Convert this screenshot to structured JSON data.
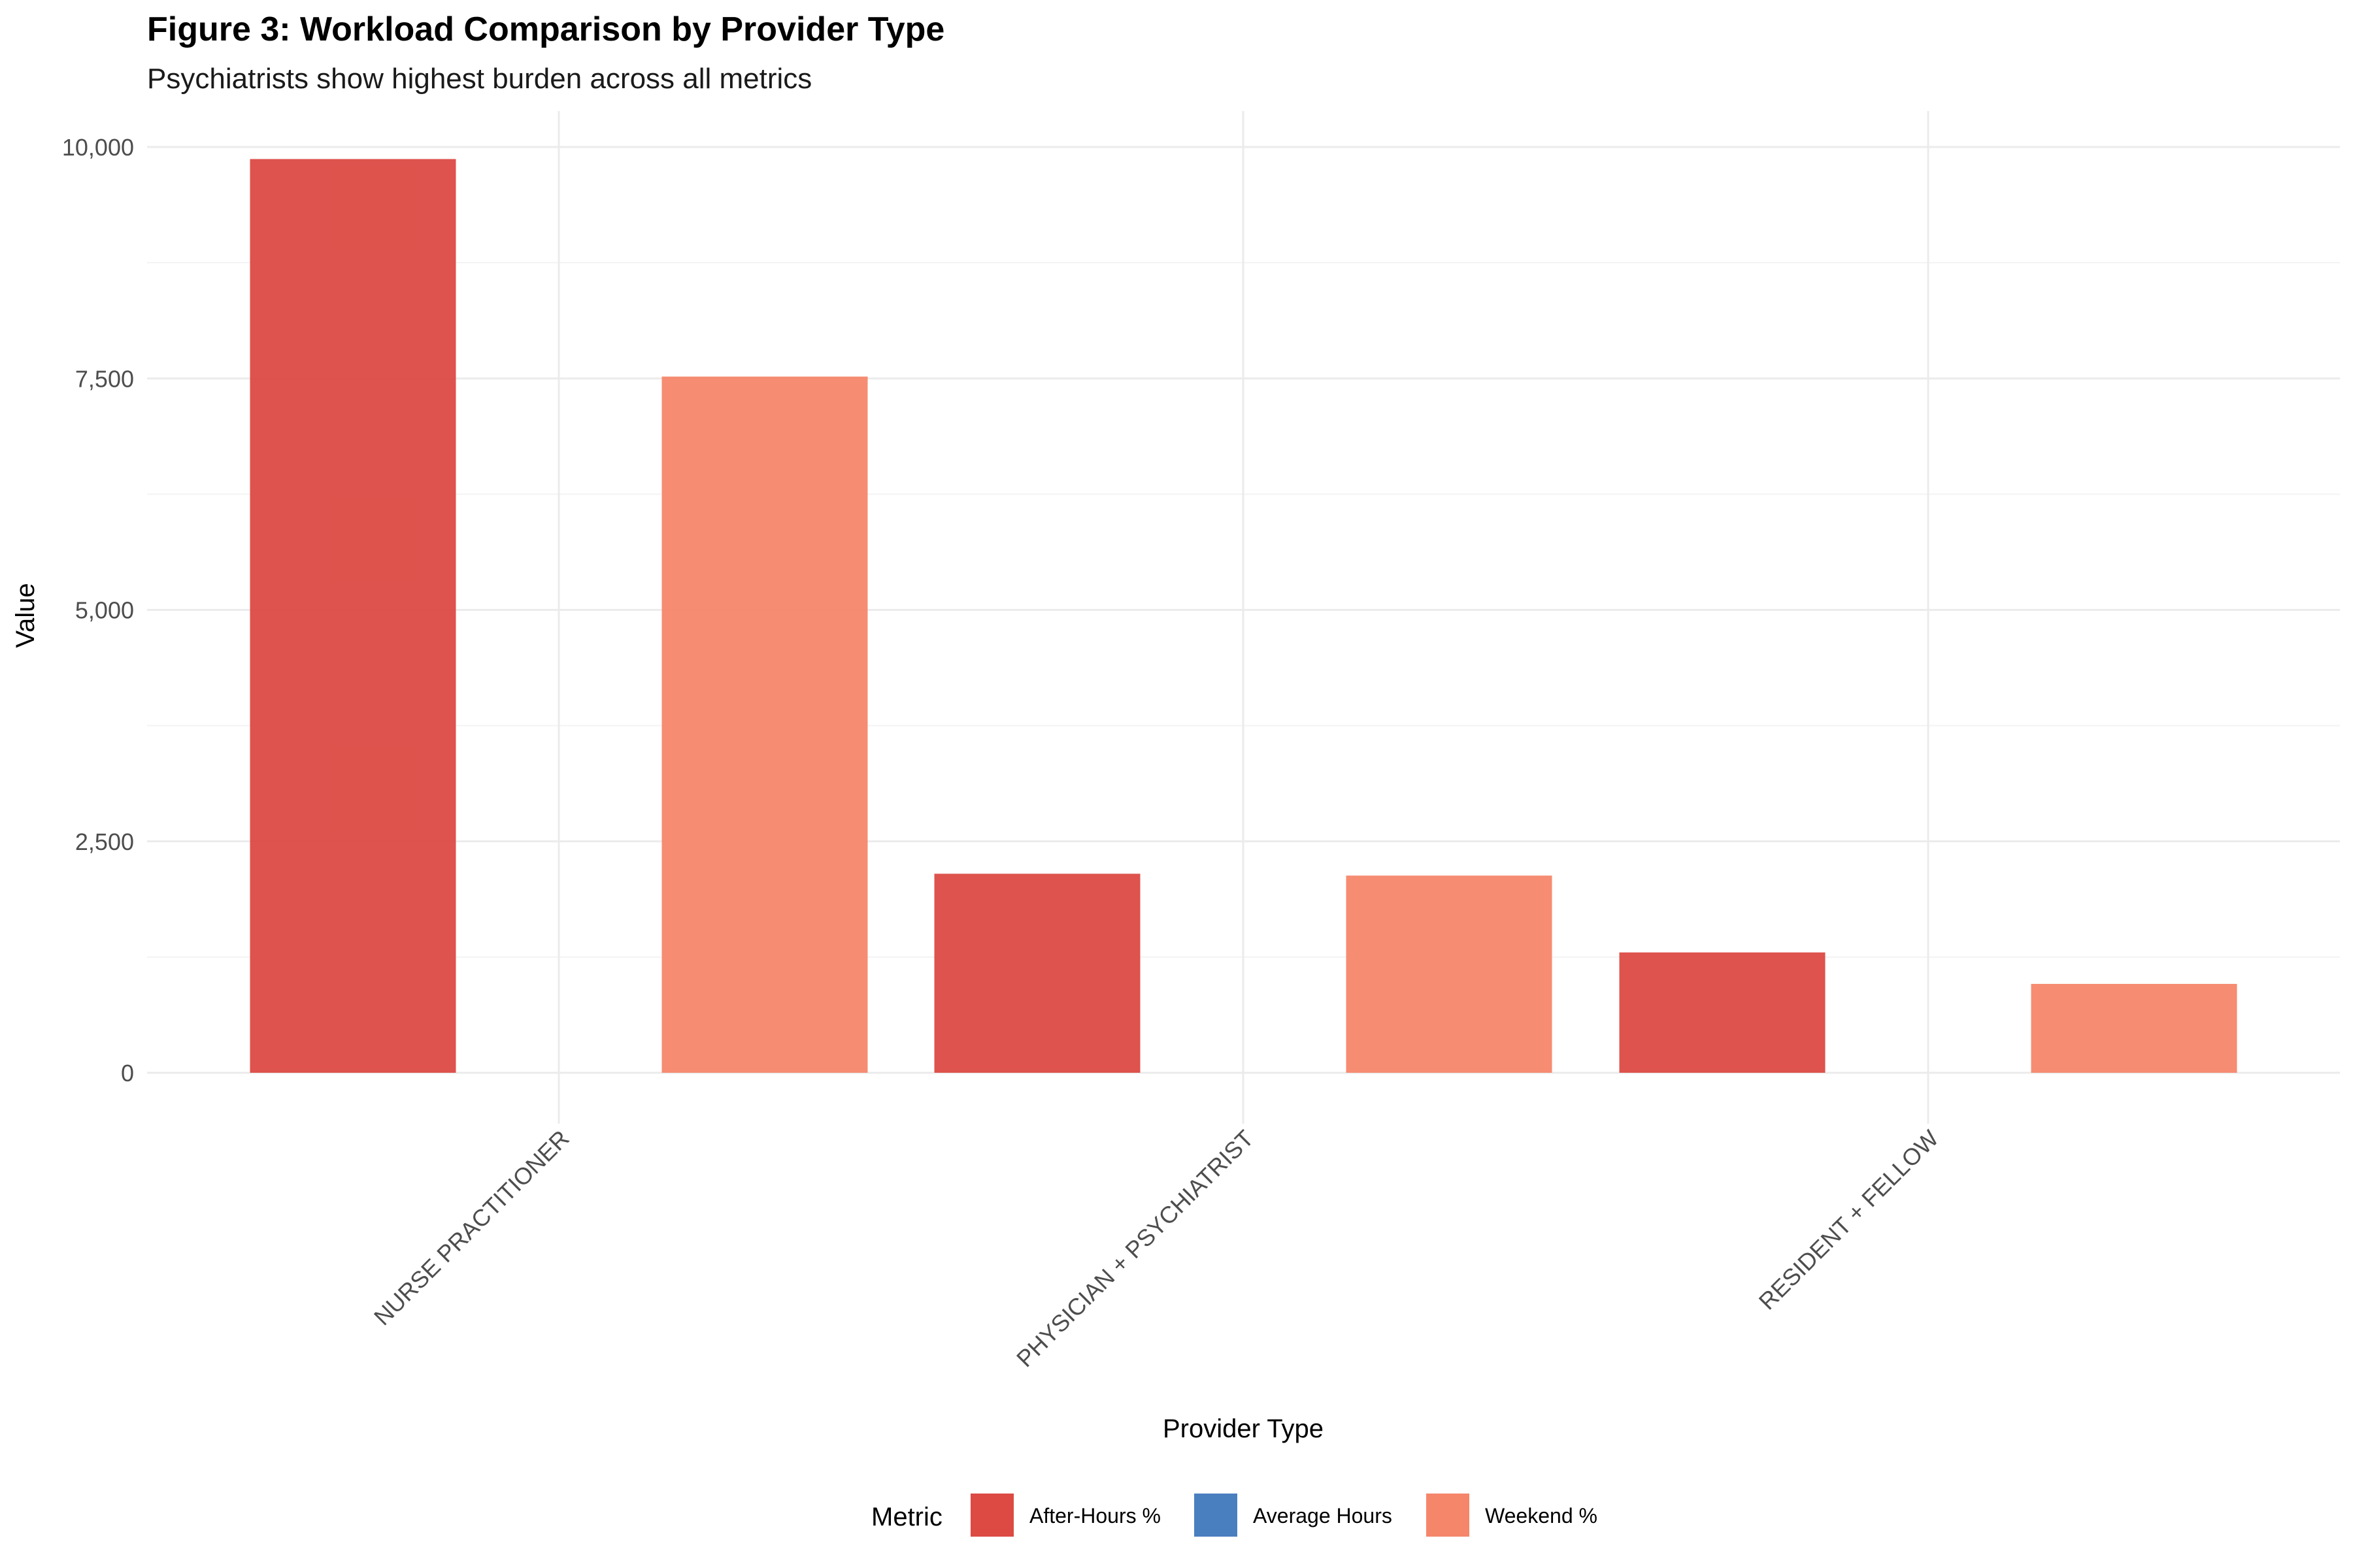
{
  "chart_data": {
    "type": "bar",
    "title": "Figure 3: Workload Comparison by Provider Type",
    "subtitle": "Psychiatrists show highest burden across all metrics",
    "xlabel": "Provider Type",
    "ylabel": "Value",
    "ylim": [
      0,
      10000
    ],
    "yticks": [
      0,
      2500,
      5000,
      7500,
      10000
    ],
    "ytick_labels": [
      "0",
      "2,500",
      "5,000",
      "7,500",
      "10,000"
    ],
    "categories": [
      "NURSE PRACTITIONER",
      "PHYSICIAN + PSYCHIATRIST",
      "RESIDENT + FELLOW"
    ],
    "legend_title": "Metric",
    "legend_position": "bottom",
    "grid": true,
    "series": [
      {
        "name": "After-Hours %",
        "color": "#dc4a43",
        "values": [
          9870,
          2150,
          1300
        ]
      },
      {
        "name": "Average Hours",
        "color": "#4a7fbf",
        "values": [
          0,
          0,
          0
        ]
      },
      {
        "name": "Weekend %",
        "color": "#f5866a",
        "values": [
          7520,
          2130,
          960
        ]
      }
    ]
  }
}
